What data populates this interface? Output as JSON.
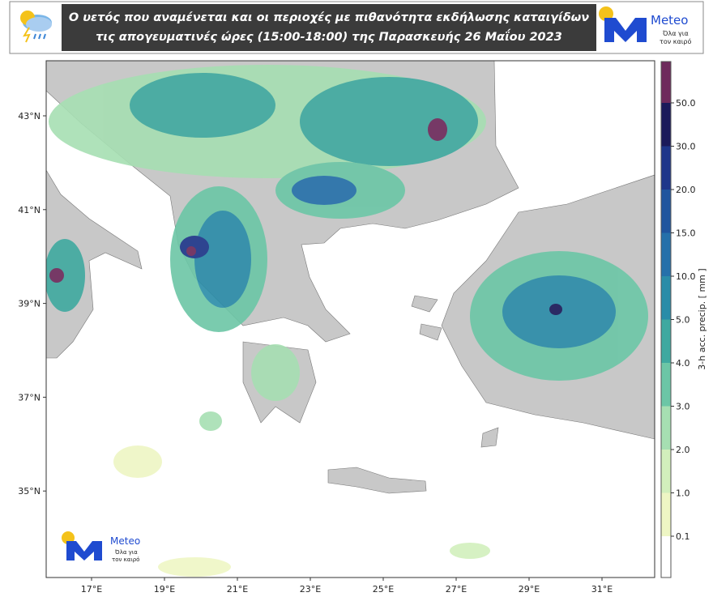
{
  "header": {
    "title": [
      "Ο υετός που αναμένεται και οι περιοχές με πιθανότητα εκδήλωσης καταιγίδων",
      "τις απογευματινές ώρες (15:00-18:00) της Παρασκευής 26 Μαΐου 2023"
    ],
    "logo": {
      "name": "Meteo",
      "slogan": [
        "Όλα για",
        "τον καιρό"
      ]
    }
  },
  "map": {
    "lat_ticks": [
      {
        "value": 43,
        "label": "43°N"
      },
      {
        "value": 41,
        "label": "41°N"
      },
      {
        "value": 39,
        "label": "39°N"
      },
      {
        "value": 37,
        "label": "37°N"
      },
      {
        "value": 35,
        "label": "35°N"
      }
    ],
    "lon_ticks": [
      {
        "value": 17,
        "label": "17°E"
      },
      {
        "value": 19,
        "label": "19°E"
      },
      {
        "value": 21,
        "label": "21°E"
      },
      {
        "value": 23,
        "label": "23°E"
      },
      {
        "value": 25,
        "label": "25°E"
      },
      {
        "value": 27,
        "label": "27°E"
      },
      {
        "value": 29,
        "label": "29°E"
      },
      {
        "value": 31,
        "label": "31°E"
      }
    ],
    "watermark": {
      "name": "Meteo",
      "slogan": [
        "Όλα για",
        "τον καιρό"
      ]
    }
  },
  "colorbar": {
    "label": "3-h acc. precip. [ mm ]",
    "ticks": [
      {
        "value": 0.1,
        "label": "0.1"
      },
      {
        "value": 1,
        "label": "1.0"
      },
      {
        "value": 2,
        "label": "2.0"
      },
      {
        "value": 3,
        "label": "3.0"
      },
      {
        "value": 4,
        "label": "4.0"
      },
      {
        "value": 5,
        "label": "5.0"
      },
      {
        "value": 10,
        "label": "10.0"
      },
      {
        "value": 15,
        "label": "15.0"
      },
      {
        "value": 20,
        "label": "20.0"
      },
      {
        "value": 30,
        "label": "30.0"
      },
      {
        "value": 50,
        "label": "50.0"
      }
    ],
    "colors": [
      "#ffffff",
      "#eef6c4",
      "#d2efbc",
      "#a6dfb2",
      "#6cc6a6",
      "#3fa9a0",
      "#2a8ca8",
      "#2570aa",
      "#20559e",
      "#1e368a",
      "#1b1a5a",
      "#6e2a5c"
    ]
  }
}
